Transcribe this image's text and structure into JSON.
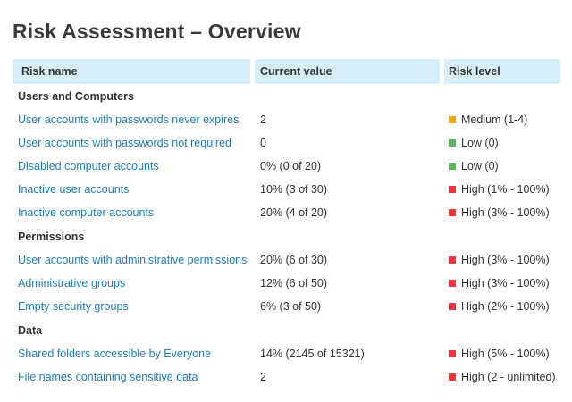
{
  "page": {
    "title": "Risk Assessment – Overview"
  },
  "colors": {
    "header_bg": "#d7edf8",
    "link": "#1d7db9",
    "medium": "#efa41f",
    "low": "#5cb75c",
    "high": "#e4393f",
    "text": "#333333"
  },
  "table": {
    "columns": [
      "Risk name",
      "Current value",
      "Risk level"
    ],
    "sections": [
      {
        "name": "Users and Computers",
        "rows": [
          {
            "name": "User accounts with passwords never expires",
            "value": "2",
            "level": "Medium (1-4)",
            "severity": "medium"
          },
          {
            "name": "User accounts with passwords not required",
            "value": "0",
            "level": "Low (0)",
            "severity": "low"
          },
          {
            "name": "Disabled computer accounts",
            "value": "0% (0 of 20)",
            "level": "Low (0)",
            "severity": "low"
          },
          {
            "name": "Inactive user accounts",
            "value": "10% (3 of 30)",
            "level": "High (1% - 100%)",
            "severity": "high"
          },
          {
            "name": "Inactive computer accounts",
            "value": "20% (4 of 20)",
            "level": "High (3% - 100%)",
            "severity": "high"
          }
        ]
      },
      {
        "name": "Permissions",
        "rows": [
          {
            "name": "User accounts with administrative permissions",
            "value": "20% (6 of 30)",
            "level": "High (3% - 100%)",
            "severity": "high"
          },
          {
            "name": "Administrative groups",
            "value": "12% (6 of 50)",
            "level": "High (3% - 100%)",
            "severity": "high"
          },
          {
            "name": "Empty security groups",
            "value": "6% (3 of 50)",
            "level": "High (2% - 100%)",
            "severity": "high"
          }
        ]
      },
      {
        "name": "Data",
        "rows": [
          {
            "name": "Shared folders accessible by Everyone",
            "value": "14% (2145 of 15321)",
            "level": "High (5% - 100%)",
            "severity": "high"
          },
          {
            "name": "File names containing sensitive data",
            "value": "2",
            "level": "High (2 - unlimited)",
            "severity": "high"
          }
        ]
      }
    ]
  }
}
